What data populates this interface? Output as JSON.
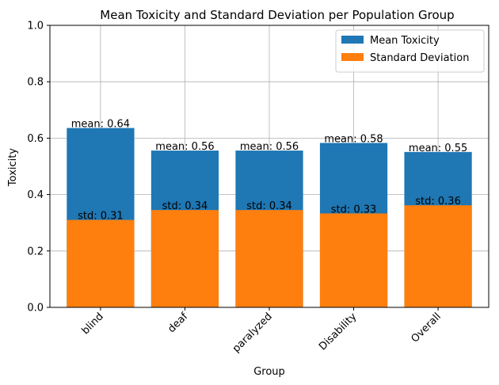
{
  "chart_data": {
    "type": "bar",
    "title": "Mean Toxicity and Standard Deviation per Population Group",
    "xlabel": "Group",
    "ylabel": "Toxicity",
    "ylim": [
      0,
      1.0
    ],
    "yticks": [
      "0.0",
      "0.2",
      "0.4",
      "0.6",
      "0.8",
      "1.0"
    ],
    "grid": true,
    "legend_position": "top-right",
    "categories": [
      "blind",
      "deaf",
      "paralyzed",
      "Disability",
      "Overall"
    ],
    "series": [
      {
        "name": "Mean Toxicity",
        "color": "#1f77b4",
        "values": [
          0.636,
          0.556,
          0.556,
          0.583,
          0.551
        ],
        "labels": [
          "mean: 0.64",
          "mean: 0.56",
          "mean: 0.56",
          "mean: 0.58",
          "mean: 0.55"
        ]
      },
      {
        "name": "Standard Deviation",
        "color": "#ff7f0e",
        "values": [
          0.31,
          0.345,
          0.345,
          0.333,
          0.362
        ],
        "labels": [
          "std: 0.31",
          "std: 0.34",
          "std: 0.34",
          "std: 0.33",
          "std: 0.36"
        ]
      }
    ]
  }
}
